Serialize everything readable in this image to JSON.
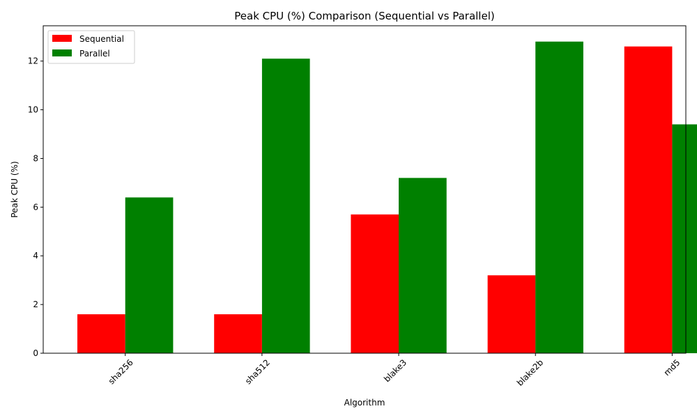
{
  "chart_data": {
    "type": "bar",
    "title": "Peak CPU (%) Comparison (Sequential vs Parallel)",
    "xlabel": "Algorithm",
    "ylabel": "Peak CPU (%)",
    "categories": [
      "sha256",
      "sha512",
      "blake3",
      "blake2b",
      "md5"
    ],
    "series": [
      {
        "name": "Sequential",
        "color": "#ff0000",
        "values": [
          1.6,
          1.6,
          5.7,
          3.2,
          12.6
        ]
      },
      {
        "name": "Parallel",
        "color": "#008000",
        "values": [
          6.4,
          12.1,
          7.2,
          12.8,
          9.4
        ]
      }
    ],
    "ylim": [
      0,
      13.45
    ],
    "yticks": [
      "0",
      "2",
      "4",
      "6",
      "8",
      "10",
      "12"
    ],
    "legend": "top-left",
    "grid": false
  }
}
